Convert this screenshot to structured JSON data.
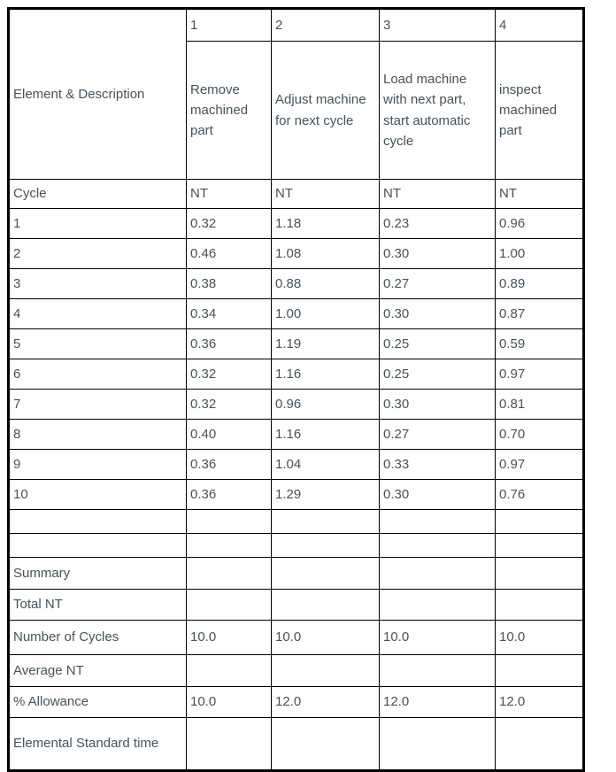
{
  "table": {
    "header": {
      "corner_label": "Element & Description",
      "element_numbers": [
        "1",
        "2",
        "3",
        "4"
      ],
      "element_descriptions": [
        "Remove machined part",
        "Adjust machine for next cycle",
        "Load machine with next part, start automatic cycle",
        "inspect machined part"
      ],
      "cycle_label": "Cycle",
      "nt_labels": [
        "NT",
        "NT",
        "NT",
        "NT"
      ]
    },
    "observations": [
      {
        "cycle": "1",
        "values": [
          "0.32",
          "1.18",
          "0.23",
          "0.96"
        ]
      },
      {
        "cycle": "2",
        "values": [
          "0.46",
          "1.08",
          "0.30",
          "1.00"
        ]
      },
      {
        "cycle": "3",
        "values": [
          "0.38",
          "0.88",
          "0.27",
          "0.89"
        ]
      },
      {
        "cycle": "4",
        "values": [
          "0.34",
          "1.00",
          "0.30",
          "0.87"
        ]
      },
      {
        "cycle": "5",
        "values": [
          "0.36",
          "1.19",
          "0.25",
          "0.59"
        ]
      },
      {
        "cycle": "6",
        "values": [
          "0.32",
          "1.16",
          "0.25",
          "0.97"
        ]
      },
      {
        "cycle": "7",
        "values": [
          "0.32",
          "0.96",
          "0.30",
          "0.81"
        ]
      },
      {
        "cycle": "8",
        "values": [
          "0.40",
          "1.16",
          "0.27",
          "0.70"
        ]
      },
      {
        "cycle": "9",
        "values": [
          "0.36",
          "1.04",
          "0.33",
          "0.97"
        ]
      },
      {
        "cycle": "10",
        "values": [
          "0.36",
          "1.29",
          "0.30",
          "0.76"
        ]
      }
    ],
    "summary": {
      "summary_label": "Summary",
      "total_nt_label": "Total NT",
      "total_nt_values": [
        "",
        "",
        "",
        ""
      ],
      "number_of_cycles_label": "Number of Cycles",
      "number_of_cycles_values": [
        "10.0",
        "10.0",
        "10.0",
        "10.0"
      ],
      "average_nt_label": "Average NT",
      "average_nt_values": [
        "",
        "",
        "",
        ""
      ],
      "percent_allowance_label": "% Allowance",
      "percent_allowance_values": [
        "10.0",
        "12.0",
        "12.0",
        "12.0"
      ],
      "elemental_standard_time_label": "Elemental Standard time",
      "elemental_standard_time_values": [
        "",
        "",
        "",
        ""
      ]
    },
    "colors": {
      "text": "#45535c",
      "border": "#000000",
      "background": "#ffffff"
    }
  }
}
